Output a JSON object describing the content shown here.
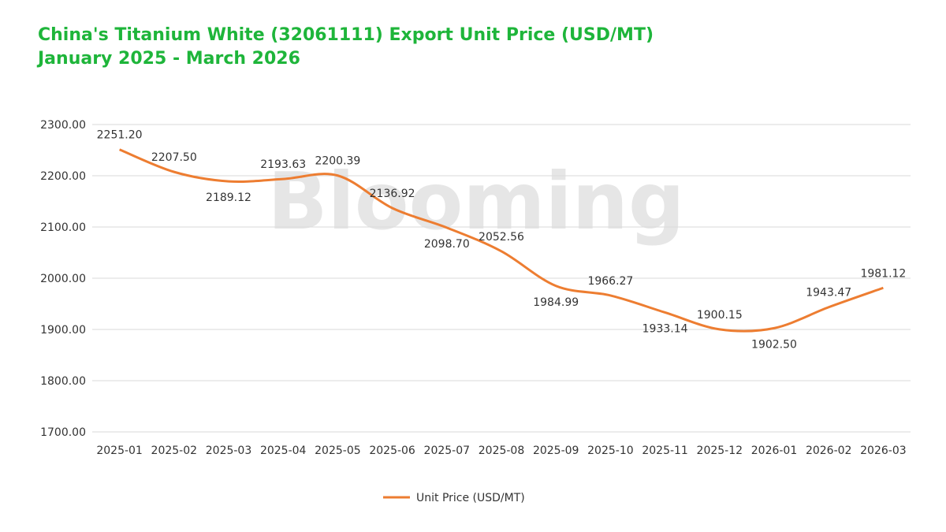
{
  "title_line1": "China's Titanium White (32061111) Export Unit Price (USD/MT)",
  "title_line2": "January 2025 - March 2026",
  "watermark": "Blooming",
  "colors": {
    "title": "#1eb53a",
    "line": "#ed7d31",
    "grid": "#d9d9d9",
    "text": "#333333"
  },
  "chart_data": {
    "type": "line",
    "title": "China's Titanium White (32061111) Export Unit Price (USD/MT)",
    "subtitle": "January 2025 - March 2026",
    "categories": [
      "2025-01",
      "2025-02",
      "2025-03",
      "2025-04",
      "2025-05",
      "2025-06",
      "2025-07",
      "2025-08",
      "2025-09",
      "2025-10",
      "2025-11",
      "2025-12",
      "2026-01",
      "2026-02",
      "2026-03"
    ],
    "series": [
      {
        "name": "Unit Price (USD/MT)",
        "values": [
          2251.2,
          2207.5,
          2189.12,
          2193.63,
          2200.39,
          2136.92,
          2098.7,
          2052.56,
          1984.99,
          1966.27,
          1933.14,
          1900.15,
          1902.5,
          1943.47,
          1981.12
        ],
        "labels": [
          "2251.20",
          "2207.50",
          "2189.12",
          "2193.63",
          "2200.39",
          "2136.92",
          "2098.70",
          "2052.56",
          "1984.99",
          "1966.27",
          "1933.14",
          "1900.15",
          "1902.50",
          "1943.47",
          "1981.12"
        ]
      }
    ],
    "yticks": [
      "1700.00",
      "1800.00",
      "1900.00",
      "2000.00",
      "2100.00",
      "2200.00",
      "2300.00"
    ],
    "ylim": [
      1700,
      2300
    ],
    "smooth": true,
    "grid": true,
    "legend": "bottom-center"
  }
}
